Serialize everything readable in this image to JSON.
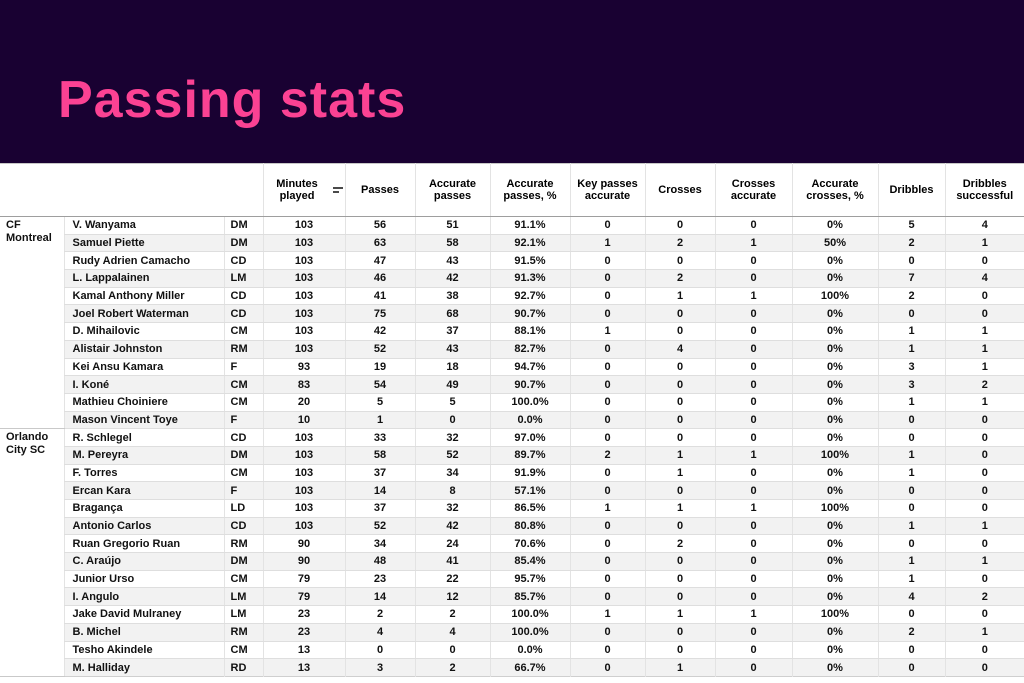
{
  "page_title": "Passing stats",
  "colors": {
    "hero_background": "#190132",
    "title_pink": "#fb4293",
    "row_alternate": "#f2f2f2",
    "grid_line": "#dedede"
  },
  "icons": {
    "minutes_played_sort": "sort-icon"
  },
  "chart_data": {
    "type": "table",
    "title": "Passing stats",
    "stat_columns": [
      "Minutes played",
      "Passes",
      "Accurate passes",
      "Accurate passes, %",
      "Key passes accurate",
      "Crosses",
      "Crosses accurate",
      "Accurate crosses, %",
      "Dribbles",
      "Dribbles successful"
    ],
    "groups": [
      {
        "team": "CF Montreal",
        "players": [
          {
            "name": "V. Wanyama",
            "position": "DM",
            "values": [
              "103",
              "56",
              "51",
              "91.1%",
              "0",
              "0",
              "0",
              "0%",
              "5",
              "4"
            ]
          },
          {
            "name": "Samuel Piette",
            "position": "DM",
            "values": [
              "103",
              "63",
              "58",
              "92.1%",
              "1",
              "2",
              "1",
              "50%",
              "2",
              "1"
            ]
          },
          {
            "name": "Rudy Adrien Camacho",
            "position": "CD",
            "values": [
              "103",
              "47",
              "43",
              "91.5%",
              "0",
              "0",
              "0",
              "0%",
              "0",
              "0"
            ]
          },
          {
            "name": "L. Lappalainen",
            "position": "LM",
            "values": [
              "103",
              "46",
              "42",
              "91.3%",
              "0",
              "2",
              "0",
              "0%",
              "7",
              "4"
            ]
          },
          {
            "name": "Kamal Anthony Miller",
            "position": "CD",
            "values": [
              "103",
              "41",
              "38",
              "92.7%",
              "0",
              "1",
              "1",
              "100%",
              "2",
              "0"
            ]
          },
          {
            "name": "Joel Robert Waterman",
            "position": "CD",
            "values": [
              "103",
              "75",
              "68",
              "90.7%",
              "0",
              "0",
              "0",
              "0%",
              "0",
              "0"
            ]
          },
          {
            "name": "D. Mihailovic",
            "position": "CM",
            "values": [
              "103",
              "42",
              "37",
              "88.1%",
              "1",
              "0",
              "0",
              "0%",
              "1",
              "1"
            ]
          },
          {
            "name": "Alistair Johnston",
            "position": "RM",
            "values": [
              "103",
              "52",
              "43",
              "82.7%",
              "0",
              "4",
              "0",
              "0%",
              "1",
              "1"
            ]
          },
          {
            "name": "Kei Ansu Kamara",
            "position": "F",
            "values": [
              "93",
              "19",
              "18",
              "94.7%",
              "0",
              "0",
              "0",
              "0%",
              "3",
              "1"
            ]
          },
          {
            "name": "I. Koné",
            "position": "CM",
            "values": [
              "83",
              "54",
              "49",
              "90.7%",
              "0",
              "0",
              "0",
              "0%",
              "3",
              "2"
            ]
          },
          {
            "name": "Mathieu Choiniere",
            "position": "CM",
            "values": [
              "20",
              "5",
              "5",
              "100.0%",
              "0",
              "0",
              "0",
              "0%",
              "1",
              "1"
            ]
          },
          {
            "name": "Mason Vincent Toye",
            "position": "F",
            "values": [
              "10",
              "1",
              "0",
              "0.0%",
              "0",
              "0",
              "0",
              "0%",
              "0",
              "0"
            ]
          }
        ]
      },
      {
        "team": "Orlando City SC",
        "players": [
          {
            "name": "R. Schlegel",
            "position": "CD",
            "values": [
              "103",
              "33",
              "32",
              "97.0%",
              "0",
              "0",
              "0",
              "0%",
              "0",
              "0"
            ]
          },
          {
            "name": "M. Pereyra",
            "position": "DM",
            "values": [
              "103",
              "58",
              "52",
              "89.7%",
              "2",
              "1",
              "1",
              "100%",
              "1",
              "0"
            ]
          },
          {
            "name": "F. Torres",
            "position": "CM",
            "values": [
              "103",
              "37",
              "34",
              "91.9%",
              "0",
              "1",
              "0",
              "0%",
              "1",
              "0"
            ]
          },
          {
            "name": "Ercan Kara",
            "position": "F",
            "values": [
              "103",
              "14",
              "8",
              "57.1%",
              "0",
              "0",
              "0",
              "0%",
              "0",
              "0"
            ]
          },
          {
            "name": "Bragança",
            "position": "LD",
            "values": [
              "103",
              "37",
              "32",
              "86.5%",
              "1",
              "1",
              "1",
              "100%",
              "0",
              "0"
            ]
          },
          {
            "name": "Antonio Carlos",
            "position": "CD",
            "values": [
              "103",
              "52",
              "42",
              "80.8%",
              "0",
              "0",
              "0",
              "0%",
              "1",
              "1"
            ]
          },
          {
            "name": "Ruan Gregorio Ruan",
            "position": "RM",
            "values": [
              "90",
              "34",
              "24",
              "70.6%",
              "0",
              "2",
              "0",
              "0%",
              "0",
              "0"
            ]
          },
          {
            "name": "C. Araújo",
            "position": "DM",
            "values": [
              "90",
              "48",
              "41",
              "85.4%",
              "0",
              "0",
              "0",
              "0%",
              "1",
              "1"
            ]
          },
          {
            "name": "Junior Urso",
            "position": "CM",
            "values": [
              "79",
              "23",
              "22",
              "95.7%",
              "0",
              "0",
              "0",
              "0%",
              "1",
              "0"
            ]
          },
          {
            "name": "I. Angulo",
            "position": "LM",
            "values": [
              "79",
              "14",
              "12",
              "85.7%",
              "0",
              "0",
              "0",
              "0%",
              "4",
              "2"
            ]
          },
          {
            "name": "Jake David Mulraney",
            "position": "LM",
            "values": [
              "23",
              "2",
              "2",
              "100.0%",
              "1",
              "1",
              "1",
              "100%",
              "0",
              "0"
            ]
          },
          {
            "name": "B. Michel",
            "position": "RM",
            "values": [
              "23",
              "4",
              "4",
              "100.0%",
              "0",
              "0",
              "0",
              "0%",
              "2",
              "1"
            ]
          },
          {
            "name": "Tesho Akindele",
            "position": "CM",
            "values": [
              "13",
              "0",
              "0",
              "0.0%",
              "0",
              "0",
              "0",
              "0%",
              "0",
              "0"
            ]
          },
          {
            "name": "M. Halliday",
            "position": "RD",
            "values": [
              "13",
              "3",
              "2",
              "66.7%",
              "0",
              "1",
              "0",
              "0%",
              "0",
              "0"
            ]
          }
        ]
      }
    ]
  }
}
